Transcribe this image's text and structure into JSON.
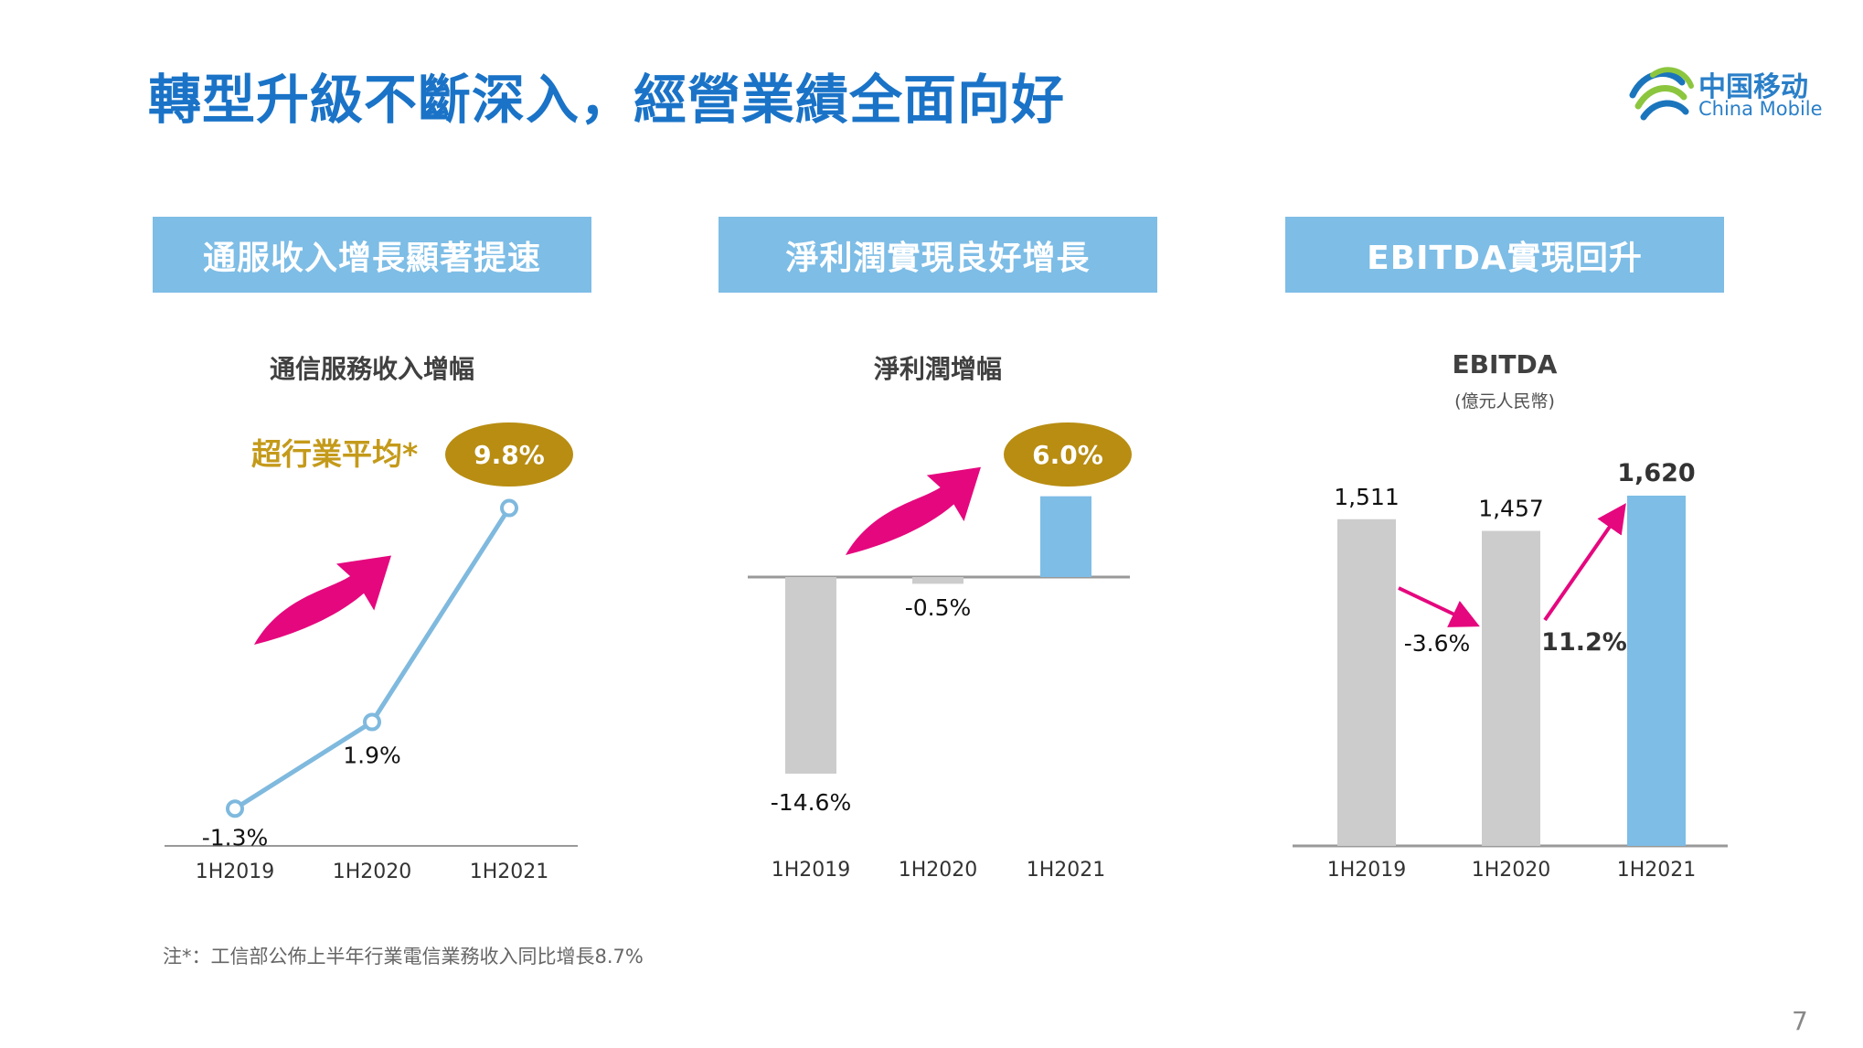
{
  "page": {
    "title": "轉型升級不斷深入，經營業績全面向好",
    "page_number": "7",
    "note": "注*：工信部公佈上半年行業電信業務收入同比增長8.7%"
  },
  "logo": {
    "cn": "中国移动",
    "en": "China Mobile"
  },
  "banners": [
    "通服收入增長顯著提速",
    "淨利潤實現良好增長",
    "EBITDA實現回升"
  ],
  "colors": {
    "highlight": "#7dbde6",
    "grey": "#cccccc",
    "badge": "#b88d12",
    "arrow": "#e5077e",
    "title": "#1a73c7"
  },
  "chart_data": [
    {
      "type": "line",
      "title": "通信服務收入增幅",
      "categories": [
        "1H2019",
        "1H2020",
        "1H2021"
      ],
      "values": [
        -1.3,
        1.9,
        9.8
      ],
      "labels": [
        "-1.3%",
        "1.9%",
        "9.8%"
      ],
      "annotation": "超行業平均*",
      "highlight_label": "9.8%",
      "ylim": [
        -2,
        11
      ]
    },
    {
      "type": "bar",
      "title": "淨利潤增幅",
      "categories": [
        "1H2019",
        "1H2020",
        "1H2021"
      ],
      "values": [
        -14.6,
        -0.5,
        6.0
      ],
      "labels": [
        "-14.6%",
        "-0.5%",
        "6.0%"
      ],
      "highlight_label": "6.0%",
      "ylim": [
        -16,
        8
      ]
    },
    {
      "type": "bar",
      "title": "EBITDA",
      "subtitle": "(億元人民幣)",
      "categories": [
        "1H2019",
        "1H2020",
        "1H2021"
      ],
      "values": [
        1511,
        1457,
        1620
      ],
      "labels": [
        "1,511",
        "1,457",
        "1,620"
      ],
      "changes": [
        "-3.6%",
        "11.2%"
      ],
      "ylim": [
        0,
        1750
      ]
    }
  ]
}
